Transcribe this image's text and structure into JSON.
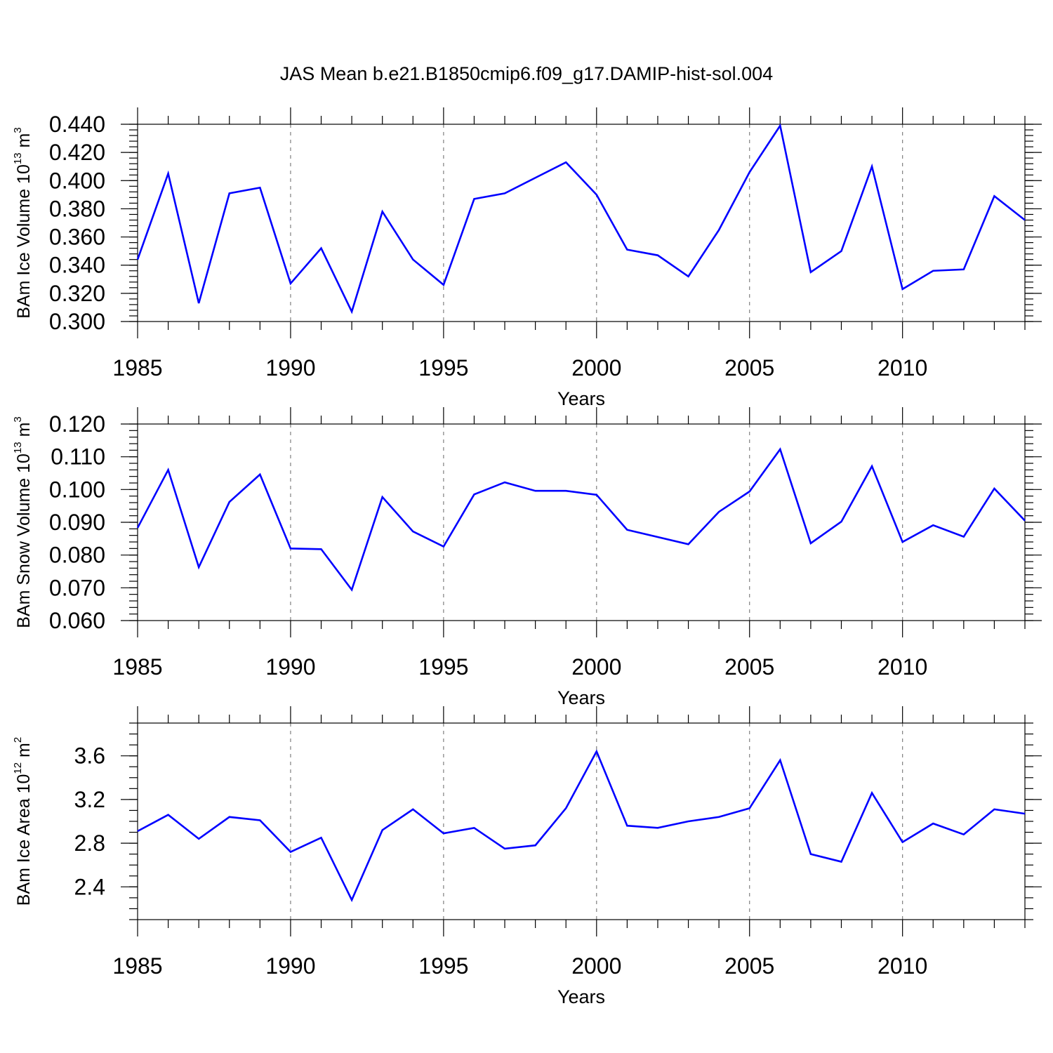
{
  "chart_data": {
    "title": "JAS Mean b.e21.B1850cmip6.f09_g17.DAMIP-hist-sol.004",
    "line_color": "#0000ff",
    "grid_color": "#7f7f7f",
    "panels": [
      {
        "type": "line",
        "ylabel_main": "BAm Ice Volume 10",
        "ylabel_exp": "13",
        "ylabel_unit": " m",
        "ylabel_unit_exp": "3",
        "xlabel": "Years",
        "xlim": [
          1985,
          2014
        ],
        "ylim": [
          0.3,
          0.44
        ],
        "yticks": [
          "0.300",
          "0.320",
          "0.340",
          "0.360",
          "0.380",
          "0.400",
          "0.420",
          "0.440"
        ],
        "ytick_values": [
          0.3,
          0.32,
          0.34,
          0.36,
          0.38,
          0.4,
          0.42,
          0.44
        ],
        "yminor_step": 0.004,
        "xticks": [
          "1985",
          "1990",
          "1995",
          "2000",
          "2005",
          "2010"
        ],
        "xtick_values": [
          1985,
          1990,
          1995,
          2000,
          2005,
          2010
        ],
        "x": [
          1985,
          1986,
          1987,
          1988,
          1989,
          1990,
          1991,
          1992,
          1993,
          1994,
          1995,
          1996,
          1997,
          1998,
          1999,
          2000,
          2001,
          2002,
          2003,
          2004,
          2005,
          2006,
          2007,
          2008,
          2009,
          2010,
          2011,
          2012,
          2013,
          2014
        ],
        "values": [
          0.344,
          0.405,
          0.313,
          0.391,
          0.395,
          0.327,
          0.352,
          0.307,
          0.378,
          0.344,
          0.326,
          0.387,
          0.391,
          0.402,
          0.413,
          0.39,
          0.351,
          0.347,
          0.332,
          0.365,
          0.406,
          0.439,
          0.335,
          0.35,
          0.41,
          0.323,
          0.336,
          0.337,
          0.389,
          0.372
        ]
      },
      {
        "type": "line",
        "ylabel_main": "BAm Snow Volume 10",
        "ylabel_exp": "13",
        "ylabel_unit": " m",
        "ylabel_unit_exp": "3",
        "xlabel": "Years",
        "xlim": [
          1985,
          2014
        ],
        "ylim": [
          0.06,
          0.12
        ],
        "yticks": [
          "0.060",
          "0.070",
          "0.080",
          "0.090",
          "0.100",
          "0.110",
          "0.120"
        ],
        "ytick_values": [
          0.06,
          0.07,
          0.08,
          0.09,
          0.1,
          0.11,
          0.12
        ],
        "yminor_step": 0.002,
        "xticks": [
          "1985",
          "1990",
          "1995",
          "2000",
          "2005",
          "2010"
        ],
        "xtick_values": [
          1985,
          1990,
          1995,
          2000,
          2005,
          2010
        ],
        "x": [
          1985,
          1986,
          1987,
          1988,
          1989,
          1990,
          1991,
          1992,
          1993,
          1994,
          1995,
          1996,
          1997,
          1998,
          1999,
          2000,
          2001,
          2002,
          2003,
          2004,
          2005,
          2006,
          2007,
          2008,
          2009,
          2010,
          2011,
          2012,
          2013,
          2014
        ],
        "values": [
          0.0883,
          0.106,
          0.0763,
          0.0962,
          0.1046,
          0.082,
          0.0818,
          0.0694,
          0.0977,
          0.0872,
          0.0826,
          0.0985,
          0.1022,
          0.0996,
          0.0996,
          0.0984,
          0.0877,
          0.0855,
          0.0833,
          0.0932,
          0.0994,
          0.1123,
          0.0836,
          0.0902,
          0.1071,
          0.084,
          0.0891,
          0.0856,
          0.1003,
          0.0905
        ]
      },
      {
        "type": "line",
        "ylabel_main": "BAm Ice Area 10",
        "ylabel_exp": "12",
        "ylabel_unit": " m",
        "ylabel_unit_exp": "2",
        "xlabel": "Years",
        "xlim": [
          1985,
          2014
        ],
        "ylim": [
          2.1,
          3.9
        ],
        "yticks": [
          "2.4",
          "2.8",
          "3.2",
          "3.6"
        ],
        "ytick_values": [
          2.4,
          2.8,
          3.2,
          3.6
        ],
        "yminor_step": 0.1,
        "xticks": [
          "1985",
          "1990",
          "1995",
          "2000",
          "2005",
          "2010"
        ],
        "xtick_values": [
          1985,
          1990,
          1995,
          2000,
          2005,
          2010
        ],
        "x": [
          1985,
          1986,
          1987,
          1988,
          1989,
          1990,
          1991,
          1992,
          1993,
          1994,
          1995,
          1996,
          1997,
          1998,
          1999,
          2000,
          2001,
          2002,
          2003,
          2004,
          2005,
          2006,
          2007,
          2008,
          2009,
          2010,
          2011,
          2012,
          2013,
          2014
        ],
        "values": [
          2.91,
          3.06,
          2.84,
          3.04,
          3.01,
          2.72,
          2.85,
          2.28,
          2.92,
          3.11,
          2.89,
          2.94,
          2.75,
          2.78,
          3.12,
          3.64,
          2.96,
          2.94,
          3.0,
          3.04,
          3.12,
          3.56,
          2.7,
          2.63,
          3.26,
          2.81,
          2.98,
          2.88,
          3.11,
          3.07
        ]
      }
    ]
  }
}
